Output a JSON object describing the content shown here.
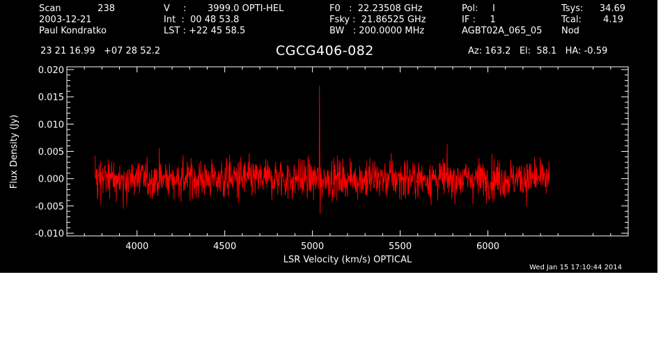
{
  "header": {
    "scan_label": "Scan",
    "scan_value": "238",
    "date": "2003-12-21",
    "observer": "Paul Kondratko",
    "v_label": "V",
    "v_sep": ":",
    "v_value": "3999.0 OPTI-HEL",
    "int_line": "Int  :  00 48 53.8",
    "lst_line": "LST : +22 45 58.5",
    "f0_line": "F0   :  22.23508 GHz",
    "fsky_line": "Fsky :  21.86525 GHz",
    "bw_line": "BW   : 200.0000 MHz",
    "pol_line": "Pol:     I",
    "if_line": "IF :     1",
    "project": "AGBT02A_065_05",
    "tsys_label": "Tsys:",
    "tsys_value": "34.69",
    "tcal_label": "Tcal:",
    "tcal_value": "4.19",
    "proc": "Nod",
    "coords": "23 21 16.99   +07 28 52.2",
    "source": "CGCG406-082",
    "azelha": "Az: 163.2   El:  58.1   HA: -0.59"
  },
  "footer": {
    "timestamp": "Wed Jan 15 17:10:44 2014"
  },
  "colors": {
    "background": "#000000",
    "axes": "#ffffff",
    "spectrum": "#ff0000"
  },
  "chart_data": {
    "type": "line",
    "xlabel": "LSR Velocity (km/s) OPTICAL",
    "ylabel": "Flux Density (Jy)",
    "xlim": [
      3600,
      6800
    ],
    "ylim": [
      -0.0105,
      0.0205
    ],
    "xticks": [
      4000,
      4500,
      5000,
      5500,
      6000
    ],
    "xticklabels": [
      "4000",
      "4500",
      "5000",
      "5500",
      "6000"
    ],
    "yticks": [
      -0.01,
      -0.005,
      0.0,
      0.005,
      0.01,
      0.015,
      0.02
    ],
    "yticklabels": [
      "-0.010",
      "-0.005",
      "0.000",
      "0.005",
      "0.010",
      "0.015",
      "0.020"
    ],
    "series": [
      {
        "velocity_range": [
          3760,
          6350
        ],
        "noise_rms": 0.002,
        "mean": 0.0,
        "features": [
          {
            "velocity": 5040,
            "flux": 0.017,
            "kind": "spike"
          },
          {
            "velocity": 5040,
            "flux": -0.0065,
            "kind": "dip"
          }
        ]
      }
    ]
  }
}
